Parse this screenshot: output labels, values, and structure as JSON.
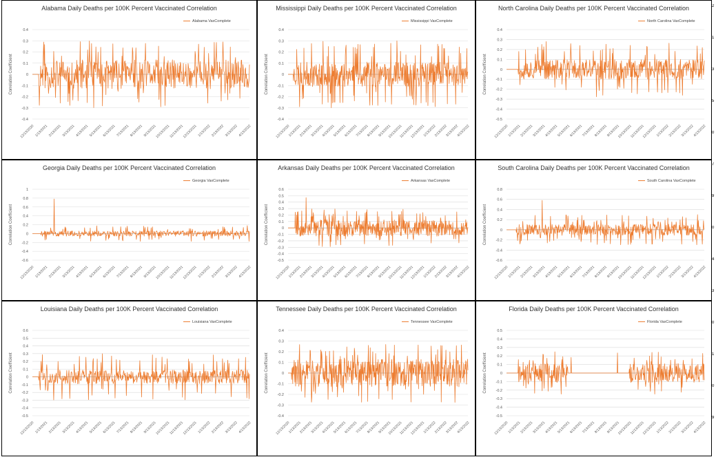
{
  "window": {
    "title": "State Daily Deaths per 100K Percent Vaccinated Correlation"
  },
  "style": {
    "line_color": "#ED7D31",
    "grid_color": "#d9d9d9",
    "axis_color": "#999999",
    "text_color": "#595959"
  },
  "shared": {
    "ylabel": "Correlation Coefficient",
    "x_tick_labels": [
      "12/13/2020",
      "1/13/2021",
      "2/13/2021",
      "3/13/2021",
      "4/13/2021",
      "5/13/2021",
      "6/13/2021",
      "7/13/2021",
      "8/13/2021",
      "9/13/2021",
      "10/13/2021",
      "11/13/2021",
      "12/13/2021",
      "1/13/2022",
      "2/13/2022",
      "3/13/2022",
      "4/13/2022"
    ]
  },
  "chart_data": [
    {
      "type": "line",
      "state": "Alabama",
      "title": "Alabama Daily Deaths per 100K Percent Vaccinated Correlation",
      "series_name": "Alabama VaxComplete",
      "ylabel": "Correlation Coefficient",
      "ylim": [
        -0.4,
        0.4
      ],
      "yticks": [
        -0.4,
        -0.3,
        -0.2,
        -0.1,
        0,
        0.1,
        0.2,
        0.3,
        0.4
      ],
      "ytick_labels": [
        "-0.4",
        "-0.3",
        "-0.2",
        "-0.1",
        "0",
        "0.1",
        "0.2",
        "0.3",
        "0.4"
      ],
      "n": 500,
      "flat_until": 0.03,
      "amp": 0.13,
      "spike": 0.3,
      "seed": 11
    },
    {
      "type": "line",
      "state": "Mississippi",
      "title": "Mississippi Daily Deaths per 100K Percent Vaccinated Correlation",
      "series_name": "Mississippi VaxComplete",
      "ylabel": "Correlation Coefficient",
      "ylim": [
        -0.4,
        0.4
      ],
      "yticks": [
        -0.4,
        -0.3,
        -0.2,
        -0.1,
        0,
        0.1,
        0.2,
        0.3,
        0.4
      ],
      "ytick_labels": [
        "-0.4",
        "-0.3",
        "-0.2",
        "-0.1",
        "0",
        "0.1",
        "0.2",
        "0.3",
        "0.4"
      ],
      "n": 500,
      "flat_until": 0.03,
      "amp": 0.11,
      "spike": 0.3,
      "seed": 23
    },
    {
      "type": "line",
      "state": "North Carolina",
      "title": "North Carolina Daily Deaths per 100K Percent Vaccinated Correlation",
      "series_name": "North Carolina VaxComplete",
      "ylabel": "Correlation Coefficient",
      "ylim": [
        -0.5,
        0.4
      ],
      "yticks": [
        -0.5,
        -0.4,
        -0.3,
        -0.2,
        -0.1,
        0,
        0.1,
        0.2,
        0.3,
        0.4
      ],
      "ytick_labels": [
        "-0.5",
        "-0.4",
        "-0.3",
        "-0.2",
        "-0.1",
        "0",
        "0.1",
        "0.2",
        "0.3",
        "0.4"
      ],
      "n": 500,
      "flat_until": 0.06,
      "amp": 0.1,
      "spike": 0.28,
      "seed": 37
    },
    {
      "type": "line",
      "state": "Georgia",
      "title": "Georgia Daily Deaths per 100K Percent Vaccinated Correlation",
      "series_name": "Georgia VaxComplete",
      "ylabel": "Correlation Coefficient",
      "ylim": [
        -0.6,
        1
      ],
      "yticks": [
        -0.6,
        -0.4,
        -0.2,
        0,
        0.2,
        0.4,
        0.6,
        0.8,
        1
      ],
      "ytick_labels": [
        "-0.6",
        "-0.4",
        "-0.2",
        "0",
        "0.2",
        "0.4",
        "0.6",
        "0.8",
        "1"
      ],
      "n": 500,
      "flat_until": 0.04,
      "amp": 0.06,
      "spike": 0.18,
      "seed": 41,
      "peak": 0.78,
      "peak_at": 0.1
    },
    {
      "type": "line",
      "state": "Arkansas",
      "title": "Arkansas Daily Deaths per 100K Percent Vaccinated Correlation",
      "series_name": "Arkansas VaxComplete",
      "ylabel": "Correlation Coefficient",
      "ylim": [
        -0.5,
        0.6
      ],
      "yticks": [
        -0.5,
        -0.4,
        -0.3,
        -0.2,
        -0.1,
        0,
        0.1,
        0.2,
        0.3,
        0.4,
        0.5,
        0.6
      ],
      "ytick_labels": [
        "-0.5",
        "-0.4",
        "-0.3",
        "-0.2",
        "-0.1",
        "0",
        "0.1",
        "0.2",
        "0.3",
        "0.4",
        "0.5",
        "0.6"
      ],
      "n": 500,
      "flat_until": 0.04,
      "amp": 0.13,
      "spike": 0.3,
      "seed": 53,
      "peak": 0.47,
      "peak_at": 0.1
    },
    {
      "type": "line",
      "state": "South Carolina",
      "title": "South Carolina Daily Deaths per 100K Percent Vaccinated Correlation",
      "series_name": "South Carolina VaxComplete",
      "ylabel": "Correlation Coefficient",
      "ylim": [
        -0.6,
        0.8
      ],
      "yticks": [
        -0.6,
        -0.4,
        -0.2,
        0,
        0.2,
        0.4,
        0.6,
        0.8
      ],
      "ytick_labels": [
        "-0.6",
        "-0.4",
        "-0.2",
        "0",
        "0.2",
        "0.4",
        "0.6",
        "0.8"
      ],
      "n": 500,
      "flat_until": 0.05,
      "amp": 0.11,
      "spike": 0.3,
      "seed": 67,
      "peak": 0.58,
      "peak_at": 0.18
    },
    {
      "type": "line",
      "state": "Louisiana",
      "title": "Louisiana Daily Deaths per 100K Percent Vaccinated Correlation",
      "series_name": "Louisiana VaxComplete",
      "ylabel": "Correlation Coefficient",
      "ylim": [
        -0.5,
        0.6
      ],
      "yticks": [
        -0.5,
        -0.4,
        -0.3,
        -0.2,
        -0.1,
        0,
        0.1,
        0.2,
        0.3,
        0.4,
        0.5,
        0.6
      ],
      "ytick_labels": [
        "-0.5",
        "-0.4",
        "-0.3",
        "-0.2",
        "-0.1",
        "0",
        "0.1",
        "0.2",
        "0.3",
        "0.4",
        "0.5",
        "0.6"
      ],
      "n": 500,
      "flat_until": 0.03,
      "amp": 0.09,
      "spike": 0.3,
      "seed": 79
    },
    {
      "type": "line",
      "state": "Tennessee",
      "title": "Tennessee Daily Deaths per 100K Percent Vaccinated Correlation",
      "series_name": "Tennessee VaxComplete",
      "ylabel": "Correlation Coefficient",
      "ylim": [
        -0.4,
        0.4
      ],
      "yticks": [
        -0.4,
        -0.3,
        -0.2,
        -0.1,
        0,
        0.1,
        0.2,
        0.3,
        0.4
      ],
      "ytick_labels": [
        "-0.4",
        "-0.3",
        "-0.2",
        "-0.1",
        "0",
        "0.1",
        "0.2",
        "0.3",
        "0.4"
      ],
      "n": 500,
      "flat_until": 0.02,
      "amp": 0.13,
      "spike": 0.28,
      "seed": 83
    },
    {
      "type": "line",
      "state": "Florida",
      "title": "Florida Daily Deaths per 100K Percent Vaccinated Correlation",
      "series_name": "Florida VaxComplete",
      "ylabel": "Correlation Coefficient",
      "ylim": [
        -0.5,
        0.5
      ],
      "yticks": [
        -0.5,
        -0.4,
        -0.3,
        -0.2,
        -0.1,
        0,
        0.1,
        0.2,
        0.3,
        0.4,
        0.5
      ],
      "ytick_labels": [
        "-0.5",
        "-0.4",
        "-0.3",
        "-0.2",
        "-0.1",
        "0",
        "0.1",
        "0.2",
        "0.3",
        "0.4",
        "0.5"
      ],
      "n": 500,
      "flat_until": 0.06,
      "amp": 0.11,
      "spike": 0.25,
      "seed": 97,
      "gap_from": 0.31,
      "gap_to": 0.62
    }
  ],
  "edge": {
    "fragments": [
      "2",
      "1",
      "3",
      "5",
      "0",
      "7",
      "9",
      "0",
      "4",
      "3",
      "0",
      "1",
      "0",
      "9"
    ]
  }
}
